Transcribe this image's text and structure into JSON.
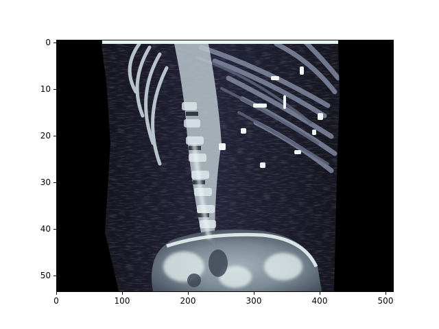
{
  "figure": {
    "background_color": "#ffffff",
    "colormap": "bone",
    "image_description_icon": "ct-scan-sagittal-image"
  },
  "axes": {
    "x": {
      "ticks": [
        0,
        100,
        200,
        300,
        400,
        500
      ],
      "labels": [
        "0",
        "100",
        "200",
        "300",
        "400",
        "500"
      ],
      "range": [
        0,
        512
      ]
    },
    "y": {
      "ticks": [
        0,
        10,
        20,
        30,
        40,
        50
      ],
      "labels": [
        "0",
        "10",
        "20",
        "30",
        "40",
        "50"
      ],
      "range": [
        -0.5,
        53.5
      ],
      "inverted": true
    }
  }
}
